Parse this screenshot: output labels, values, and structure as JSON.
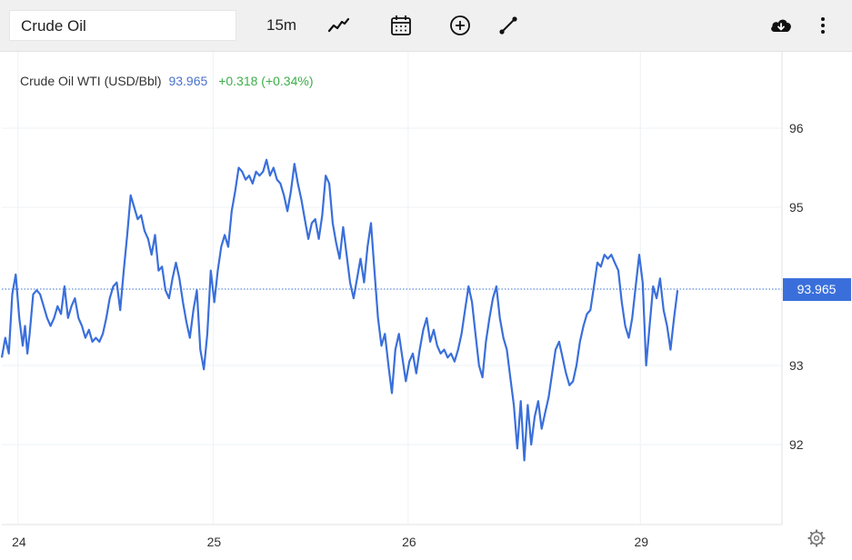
{
  "toolbar": {
    "symbol": "Crude Oil",
    "interval": "15m",
    "icons": [
      "line-chart-icon",
      "calendar-icon",
      "crosshair-plus-icon",
      "draw-line-icon",
      "download-cloud-icon",
      "more-vertical-icon"
    ]
  },
  "legend": {
    "name": "Crude Oil WTI (USD/Bbl)",
    "price": "93.965",
    "change": "+0.318 (+0.34%)"
  },
  "colors": {
    "line": "#3a6fdb",
    "change_positive": "#3fae49",
    "price_tag": "#3a6fdb"
  },
  "chart_data": {
    "type": "line",
    "title": "",
    "xlabel": "",
    "ylabel": "",
    "ylim": [
      91,
      97
    ],
    "y_ticks": [
      92,
      93,
      95,
      96
    ],
    "x_ticks": [
      {
        "label": "24",
        "x": 0.7
      },
      {
        "label": "25",
        "x": 9.1
      },
      {
        "label": "26",
        "x": 17.5
      },
      {
        "label": "29",
        "x": 27.5
      }
    ],
    "current_price": 93.965,
    "current_price_label": "93.965",
    "grid": true,
    "series": [
      {
        "values": [
          [
            0.0,
            93.1
          ],
          [
            0.15,
            93.35
          ],
          [
            0.3,
            93.15
          ],
          [
            0.45,
            93.9
          ],
          [
            0.6,
            94.15
          ],
          [
            0.75,
            93.6
          ],
          [
            0.9,
            93.25
          ],
          [
            1.0,
            93.5
          ],
          [
            1.1,
            93.15
          ],
          [
            1.2,
            93.4
          ],
          [
            1.35,
            93.9
          ],
          [
            1.5,
            93.95
          ],
          [
            1.65,
            93.9
          ],
          [
            1.8,
            93.75
          ],
          [
            1.95,
            93.6
          ],
          [
            2.1,
            93.5
          ],
          [
            2.25,
            93.6
          ],
          [
            2.4,
            93.75
          ],
          [
            2.55,
            93.65
          ],
          [
            2.7,
            94.0
          ],
          [
            2.85,
            93.6
          ],
          [
            3.0,
            93.75
          ],
          [
            3.15,
            93.85
          ],
          [
            3.3,
            93.6
          ],
          [
            3.45,
            93.5
          ],
          [
            3.6,
            93.35
          ],
          [
            3.75,
            93.45
          ],
          [
            3.9,
            93.3
          ],
          [
            4.05,
            93.35
          ],
          [
            4.2,
            93.3
          ],
          [
            4.35,
            93.4
          ],
          [
            4.5,
            93.6
          ],
          [
            4.65,
            93.85
          ],
          [
            4.8,
            94.0
          ],
          [
            4.95,
            94.05
          ],
          [
            5.1,
            93.7
          ],
          [
            5.25,
            94.2
          ],
          [
            5.4,
            94.65
          ],
          [
            5.55,
            95.15
          ],
          [
            5.7,
            95.0
          ],
          [
            5.85,
            94.85
          ],
          [
            6.0,
            94.9
          ],
          [
            6.15,
            94.7
          ],
          [
            6.3,
            94.6
          ],
          [
            6.45,
            94.4
          ],
          [
            6.6,
            94.65
          ],
          [
            6.75,
            94.2
          ],
          [
            6.9,
            94.25
          ],
          [
            7.05,
            93.95
          ],
          [
            7.2,
            93.85
          ],
          [
            7.35,
            94.1
          ],
          [
            7.5,
            94.3
          ],
          [
            7.65,
            94.1
          ],
          [
            7.8,
            93.8
          ],
          [
            7.95,
            93.55
          ],
          [
            8.1,
            93.35
          ],
          [
            8.25,
            93.7
          ],
          [
            8.4,
            93.95
          ],
          [
            8.55,
            93.2
          ],
          [
            8.7,
            92.95
          ],
          [
            8.85,
            93.4
          ],
          [
            9.0,
            94.2
          ],
          [
            9.15,
            93.8
          ],
          [
            9.3,
            94.2
          ],
          [
            9.45,
            94.5
          ],
          [
            9.6,
            94.65
          ],
          [
            9.75,
            94.5
          ],
          [
            9.9,
            94.95
          ],
          [
            10.05,
            95.2
          ],
          [
            10.2,
            95.5
          ],
          [
            10.35,
            95.45
          ],
          [
            10.5,
            95.35
          ],
          [
            10.65,
            95.4
          ],
          [
            10.8,
            95.3
          ],
          [
            10.95,
            95.45
          ],
          [
            11.1,
            95.4
          ],
          [
            11.25,
            95.45
          ],
          [
            11.4,
            95.6
          ],
          [
            11.55,
            95.4
          ],
          [
            11.7,
            95.5
          ],
          [
            11.85,
            95.35
          ],
          [
            12.0,
            95.3
          ],
          [
            12.15,
            95.15
          ],
          [
            12.3,
            94.95
          ],
          [
            12.45,
            95.2
          ],
          [
            12.6,
            95.55
          ],
          [
            12.75,
            95.3
          ],
          [
            12.9,
            95.1
          ],
          [
            13.05,
            94.85
          ],
          [
            13.2,
            94.6
          ],
          [
            13.35,
            94.8
          ],
          [
            13.5,
            94.85
          ],
          [
            13.65,
            94.6
          ],
          [
            13.8,
            94.9
          ],
          [
            13.95,
            95.4
          ],
          [
            14.1,
            95.3
          ],
          [
            14.25,
            94.8
          ],
          [
            14.4,
            94.55
          ],
          [
            14.55,
            94.35
          ],
          [
            14.7,
            94.75
          ],
          [
            14.85,
            94.4
          ],
          [
            15.0,
            94.05
          ],
          [
            15.15,
            93.85
          ],
          [
            15.3,
            94.1
          ],
          [
            15.45,
            94.35
          ],
          [
            15.6,
            94.05
          ],
          [
            15.75,
            94.5
          ],
          [
            15.9,
            94.8
          ],
          [
            16.05,
            94.2
          ],
          [
            16.2,
            93.6
          ],
          [
            16.35,
            93.25
          ],
          [
            16.5,
            93.4
          ],
          [
            16.65,
            93.0
          ],
          [
            16.8,
            92.65
          ],
          [
            16.95,
            93.2
          ],
          [
            17.1,
            93.4
          ],
          [
            17.25,
            93.1
          ],
          [
            17.4,
            92.8
          ],
          [
            17.55,
            93.05
          ],
          [
            17.7,
            93.15
          ],
          [
            17.85,
            92.9
          ],
          [
            18.0,
            93.2
          ],
          [
            18.15,
            93.45
          ],
          [
            18.3,
            93.6
          ],
          [
            18.45,
            93.3
          ],
          [
            18.6,
            93.45
          ],
          [
            18.75,
            93.25
          ],
          [
            18.9,
            93.15
          ],
          [
            19.05,
            93.2
          ],
          [
            19.2,
            93.1
          ],
          [
            19.35,
            93.15
          ],
          [
            19.5,
            93.05
          ],
          [
            19.65,
            93.2
          ],
          [
            19.8,
            93.4
          ],
          [
            19.95,
            93.7
          ],
          [
            20.1,
            94.0
          ],
          [
            20.25,
            93.8
          ],
          [
            20.4,
            93.4
          ],
          [
            20.55,
            93.0
          ],
          [
            20.7,
            92.85
          ],
          [
            20.85,
            93.3
          ],
          [
            21.0,
            93.6
          ],
          [
            21.15,
            93.85
          ],
          [
            21.3,
            94.0
          ],
          [
            21.45,
            93.6
          ],
          [
            21.6,
            93.35
          ],
          [
            21.75,
            93.2
          ],
          [
            21.9,
            92.85
          ],
          [
            22.05,
            92.5
          ],
          [
            22.2,
            91.95
          ],
          [
            22.35,
            92.55
          ],
          [
            22.5,
            91.8
          ],
          [
            22.65,
            92.5
          ],
          [
            22.8,
            92.0
          ],
          [
            22.95,
            92.35
          ],
          [
            23.1,
            92.55
          ],
          [
            23.25,
            92.2
          ],
          [
            23.4,
            92.4
          ],
          [
            23.55,
            92.6
          ],
          [
            23.7,
            92.9
          ],
          [
            23.85,
            93.2
          ],
          [
            24.0,
            93.3
          ],
          [
            24.15,
            93.1
          ],
          [
            24.3,
            92.9
          ],
          [
            24.45,
            92.75
          ],
          [
            24.6,
            92.8
          ],
          [
            24.75,
            93.0
          ],
          [
            24.9,
            93.3
          ],
          [
            25.05,
            93.5
          ],
          [
            25.2,
            93.65
          ],
          [
            25.35,
            93.7
          ],
          [
            25.5,
            94.0
          ],
          [
            25.65,
            94.3
          ],
          [
            25.8,
            94.25
          ],
          [
            25.95,
            94.4
          ],
          [
            26.1,
            94.35
          ],
          [
            26.25,
            94.4
          ],
          [
            26.4,
            94.3
          ],
          [
            26.55,
            94.2
          ],
          [
            26.7,
            93.8
          ],
          [
            26.85,
            93.5
          ],
          [
            27.0,
            93.35
          ],
          [
            27.15,
            93.6
          ],
          [
            27.3,
            94.0
          ],
          [
            27.45,
            94.4
          ],
          [
            27.6,
            94.05
          ],
          [
            27.75,
            93.0
          ],
          [
            27.9,
            93.5
          ],
          [
            28.05,
            94.0
          ],
          [
            28.2,
            93.85
          ],
          [
            28.35,
            94.1
          ],
          [
            28.5,
            93.7
          ],
          [
            28.65,
            93.5
          ],
          [
            28.8,
            93.2
          ],
          [
            28.95,
            93.6
          ],
          [
            29.1,
            93.95
          ]
        ]
      }
    ]
  },
  "footer": {
    "icon": "settings-gear-icon"
  }
}
